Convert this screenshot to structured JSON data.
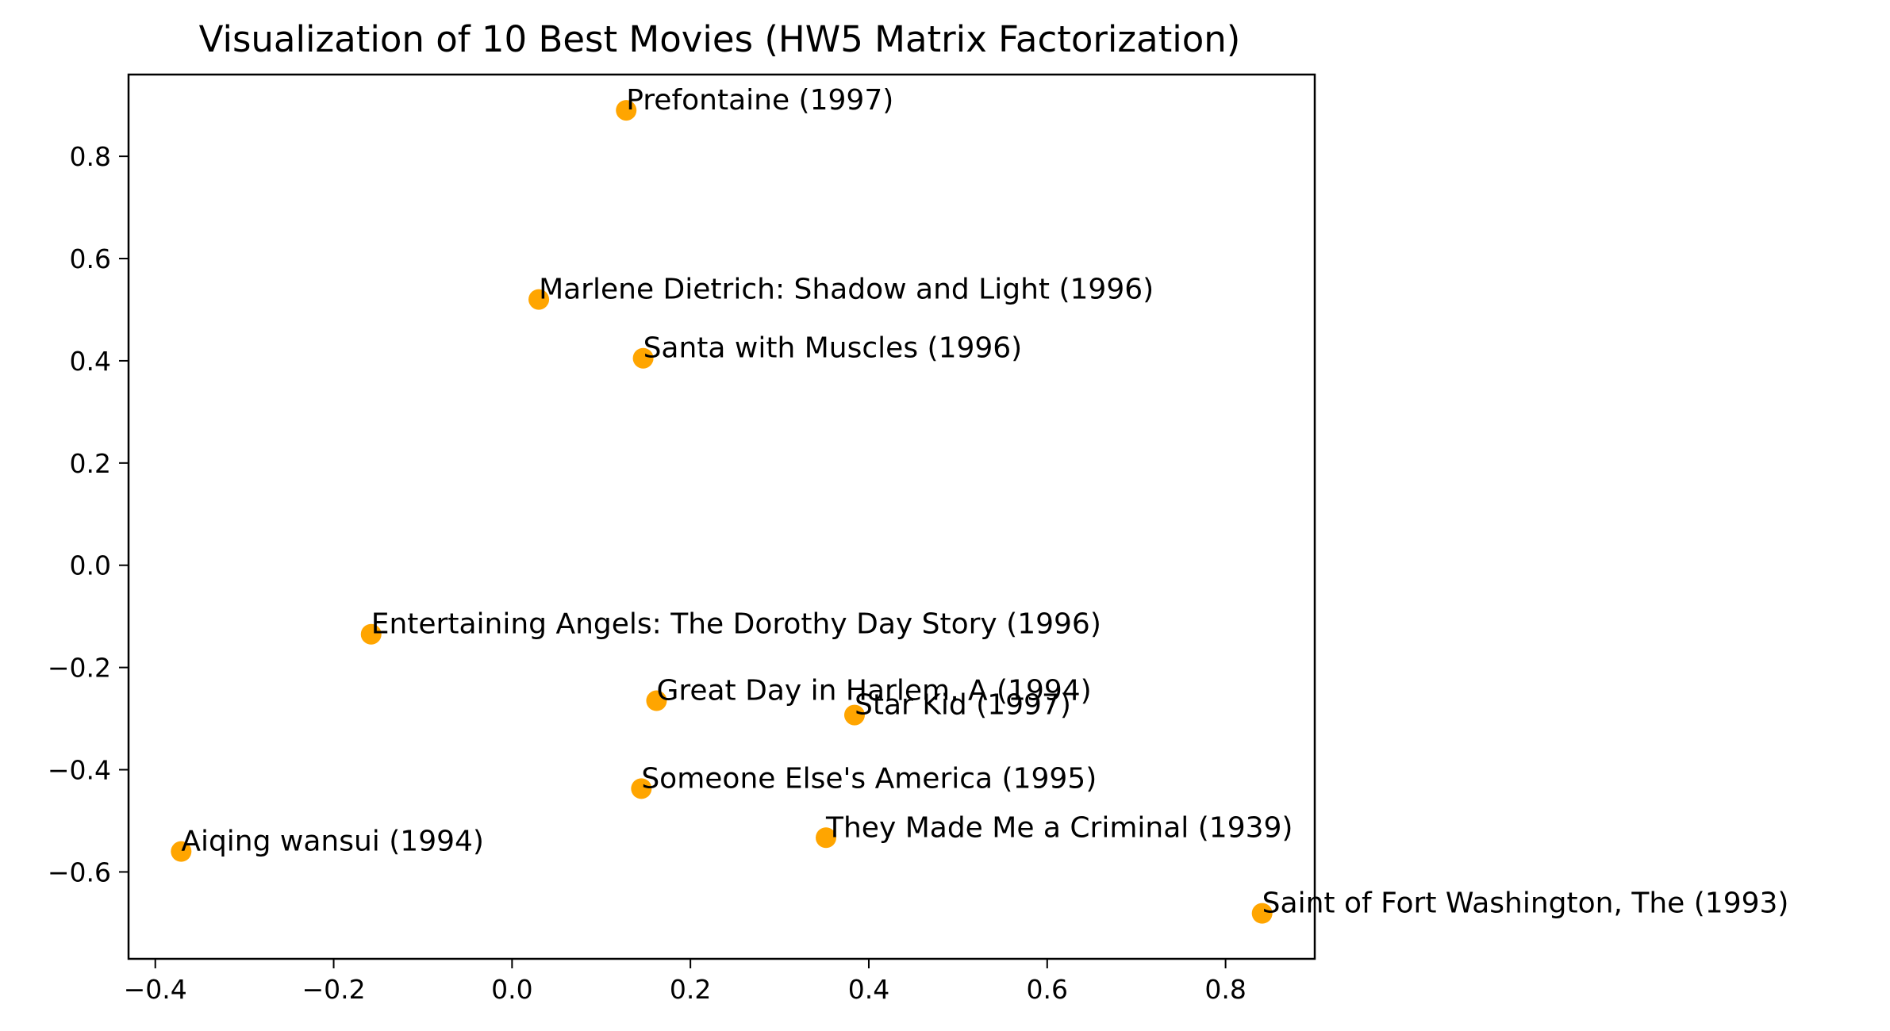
{
  "chart_data": {
    "type": "scatter",
    "title": "Visualization of 10 Best Movies (HW5 Matrix Factorization)",
    "xlabel": "",
    "ylabel": "",
    "xlim": [
      -0.43,
      0.9
    ],
    "ylim": [
      -0.77,
      0.96
    ],
    "x_ticks": [
      -0.4,
      -0.2,
      0.0,
      0.2,
      0.4,
      0.6,
      0.8
    ],
    "x_tick_labels": [
      "−0.4",
      "−0.2",
      "0.0",
      "0.2",
      "0.4",
      "0.6",
      "0.8"
    ],
    "y_ticks": [
      0.8,
      0.6,
      0.4,
      0.2,
      0.0,
      -0.2,
      -0.4,
      -0.6
    ],
    "y_tick_labels": [
      "0.8",
      "0.6",
      "0.4",
      "0.2",
      "0.0",
      "−0.2",
      "−0.4",
      "−0.6"
    ],
    "grid": false,
    "marker_color": "#FFA500",
    "points": [
      {
        "label": "Prefontaine (1997)",
        "x": 0.128,
        "y": 0.89
      },
      {
        "label": "Marlene Dietrich: Shadow and Light (1996)",
        "x": 0.03,
        "y": 0.52
      },
      {
        "label": "Santa with Muscles (1996)",
        "x": 0.147,
        "y": 0.405
      },
      {
        "label": "Entertaining Angels: The Dorothy Day Story (1996)",
        "x": -0.158,
        "y": -0.135
      },
      {
        "label": "Great Day in Harlem, A (1994)",
        "x": 0.162,
        "y": -0.265
      },
      {
        "label": "Star Kid (1997)",
        "x": 0.384,
        "y": -0.293
      },
      {
        "label": "Someone Else's America (1995)",
        "x": 0.145,
        "y": -0.437
      },
      {
        "label": "They Made Me a Criminal (1939)",
        "x": 0.352,
        "y": -0.533
      },
      {
        "label": "Aiqing wansui (1994)",
        "x": -0.371,
        "y": -0.56
      },
      {
        "label": "Saint of Fort Washington, The (1993)",
        "x": 0.841,
        "y": -0.681
      }
    ]
  }
}
